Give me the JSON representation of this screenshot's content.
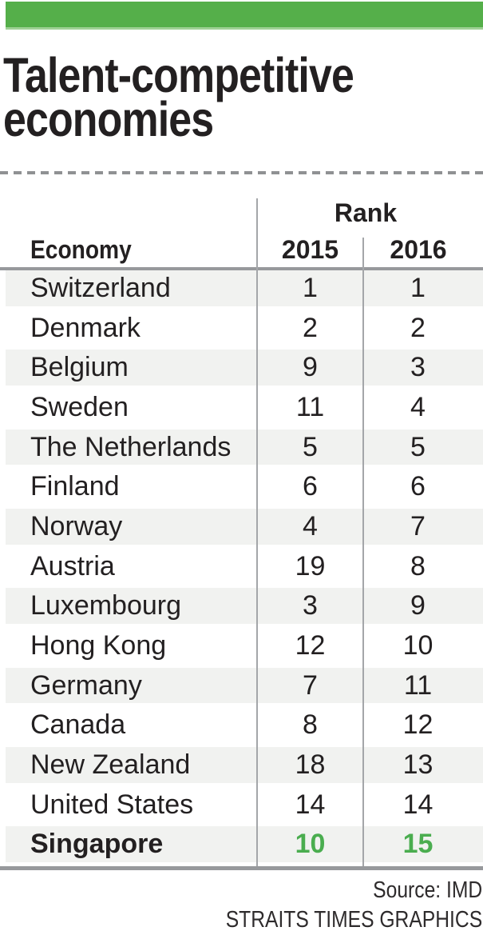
{
  "colors": {
    "brand_green": "#55af4a",
    "highlight_green": "#4aad4f",
    "ink": "#232021",
    "row_shade": "#f1f2f0",
    "rule_gray": "#97999c"
  },
  "header": {
    "title_line1": "Talent-competitive",
    "title_line2": "economies"
  },
  "table": {
    "economy_header": "Economy",
    "rank_header": "Rank",
    "year_2015_header": "2015",
    "year_2016_header": "2016",
    "rows": [
      {
        "economy": "Switzerland",
        "rank_2015": "1",
        "rank_2016": "1",
        "highlight": false
      },
      {
        "economy": "Denmark",
        "rank_2015": "2",
        "rank_2016": "2",
        "highlight": false
      },
      {
        "economy": "Belgium",
        "rank_2015": "9",
        "rank_2016": "3",
        "highlight": false
      },
      {
        "economy": "Sweden",
        "rank_2015": "11",
        "rank_2016": "4",
        "highlight": false
      },
      {
        "economy": "The Netherlands",
        "rank_2015": "5",
        "rank_2016": "5",
        "highlight": false
      },
      {
        "economy": "Finland",
        "rank_2015": "6",
        "rank_2016": "6",
        "highlight": false
      },
      {
        "economy": "Norway",
        "rank_2015": "4",
        "rank_2016": "7",
        "highlight": false
      },
      {
        "economy": "Austria",
        "rank_2015": "19",
        "rank_2016": "8",
        "highlight": false
      },
      {
        "economy": "Luxembourg",
        "rank_2015": "3",
        "rank_2016": "9",
        "highlight": false
      },
      {
        "economy": "Hong Kong",
        "rank_2015": "12",
        "rank_2016": "10",
        "highlight": false
      },
      {
        "economy": "Germany",
        "rank_2015": "7",
        "rank_2016": "11",
        "highlight": false
      },
      {
        "economy": "Canada",
        "rank_2015": "8",
        "rank_2016": "12",
        "highlight": false
      },
      {
        "economy": "New Zealand",
        "rank_2015": "18",
        "rank_2016": "13",
        "highlight": false
      },
      {
        "economy": "United States",
        "rank_2015": "14",
        "rank_2016": "14",
        "highlight": false
      },
      {
        "economy": "Singapore",
        "rank_2015": "10",
        "rank_2016": "15",
        "highlight": true
      }
    ]
  },
  "footer": {
    "source": "Source: IMD",
    "credit": "STRAITS TIMES GRAPHICS"
  },
  "chart_data": {
    "type": "table",
    "title": "Talent-competitive economies",
    "columns": [
      "Economy",
      "Rank 2015",
      "Rank 2016"
    ],
    "rows": [
      [
        "Switzerland",
        1,
        1
      ],
      [
        "Denmark",
        2,
        2
      ],
      [
        "Belgium",
        9,
        3
      ],
      [
        "Sweden",
        11,
        4
      ],
      [
        "The Netherlands",
        5,
        5
      ],
      [
        "Finland",
        6,
        6
      ],
      [
        "Norway",
        4,
        7
      ],
      [
        "Austria",
        19,
        8
      ],
      [
        "Luxembourg",
        3,
        9
      ],
      [
        "Hong Kong",
        12,
        10
      ],
      [
        "Germany",
        7,
        11
      ],
      [
        "Canada",
        8,
        12
      ],
      [
        "New Zealand",
        18,
        13
      ],
      [
        "United States",
        14,
        14
      ],
      [
        "Singapore",
        10,
        15
      ]
    ],
    "highlighted_row": "Singapore",
    "source": "IMD",
    "credit": "STRAITS TIMES GRAPHICS"
  }
}
